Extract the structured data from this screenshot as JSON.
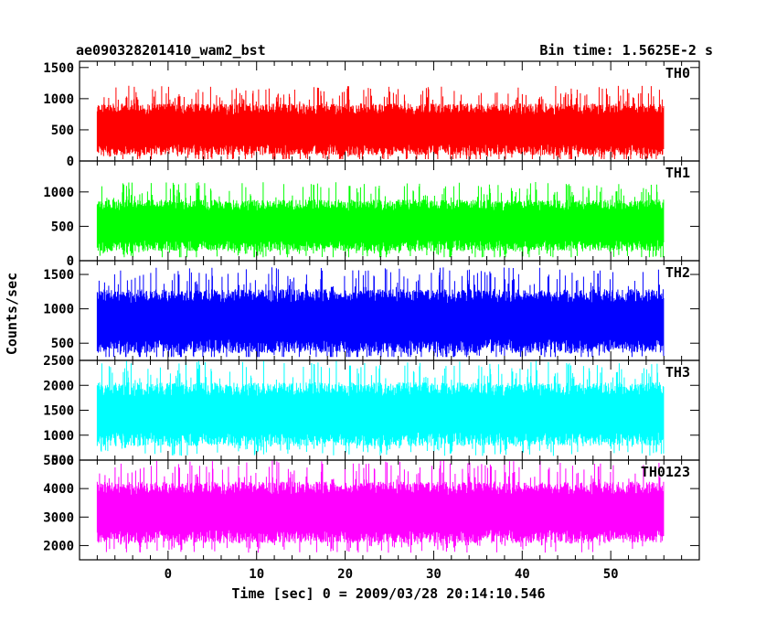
{
  "chart_data": {
    "type": "line",
    "title_left": "ae090328201410_wam2_bst",
    "title_right": "Bin time: 1.5625E-2 s",
    "xlabel": "Time [sec] 0 = 2009/03/28 20:14:10.546",
    "ylabel": "Counts/sec",
    "xlim": [
      -10,
      60
    ],
    "x_data_range": [
      -8,
      56
    ],
    "xticks": [
      "0",
      "10",
      "20",
      "30",
      "40",
      "50"
    ],
    "panels": [
      {
        "name": "TH0",
        "color": "#ff0000",
        "ylim": [
          0,
          1600
        ],
        "yticks": [
          "0",
          "500",
          "1000",
          "1500"
        ],
        "mean": 560,
        "spread": 520,
        "min": 30,
        "max": 1550
      },
      {
        "name": "TH1",
        "color": "#00ff00",
        "ylim": [
          0,
          1450
        ],
        "yticks": [
          "0",
          "500",
          "1000"
        ],
        "mean": 560,
        "spread": 470,
        "min": 50,
        "max": 1450
      },
      {
        "name": "TH2",
        "color": "#0000ff",
        "ylim": [
          250,
          1700
        ],
        "yticks": [
          "500",
          "1000",
          "1500"
        ],
        "mean": 880,
        "spread": 580,
        "min": 300,
        "max": 1700
      },
      {
        "name": "TH3",
        "color": "#00ffff",
        "ylim": [
          500,
          2500
        ],
        "yticks": [
          "500",
          "1000",
          "1500",
          "2000",
          "2500"
        ],
        "mean": 1500,
        "spread": 800,
        "min": 550,
        "max": 2500
      },
      {
        "name": "TH0123",
        "color": "#ff00ff",
        "ylim": [
          1500,
          5000
        ],
        "yticks": [
          "2000",
          "3000",
          "4000",
          "5000"
        ],
        "mean": 3300,
        "spread": 1350,
        "min": 1600,
        "max": 5000
      }
    ]
  }
}
